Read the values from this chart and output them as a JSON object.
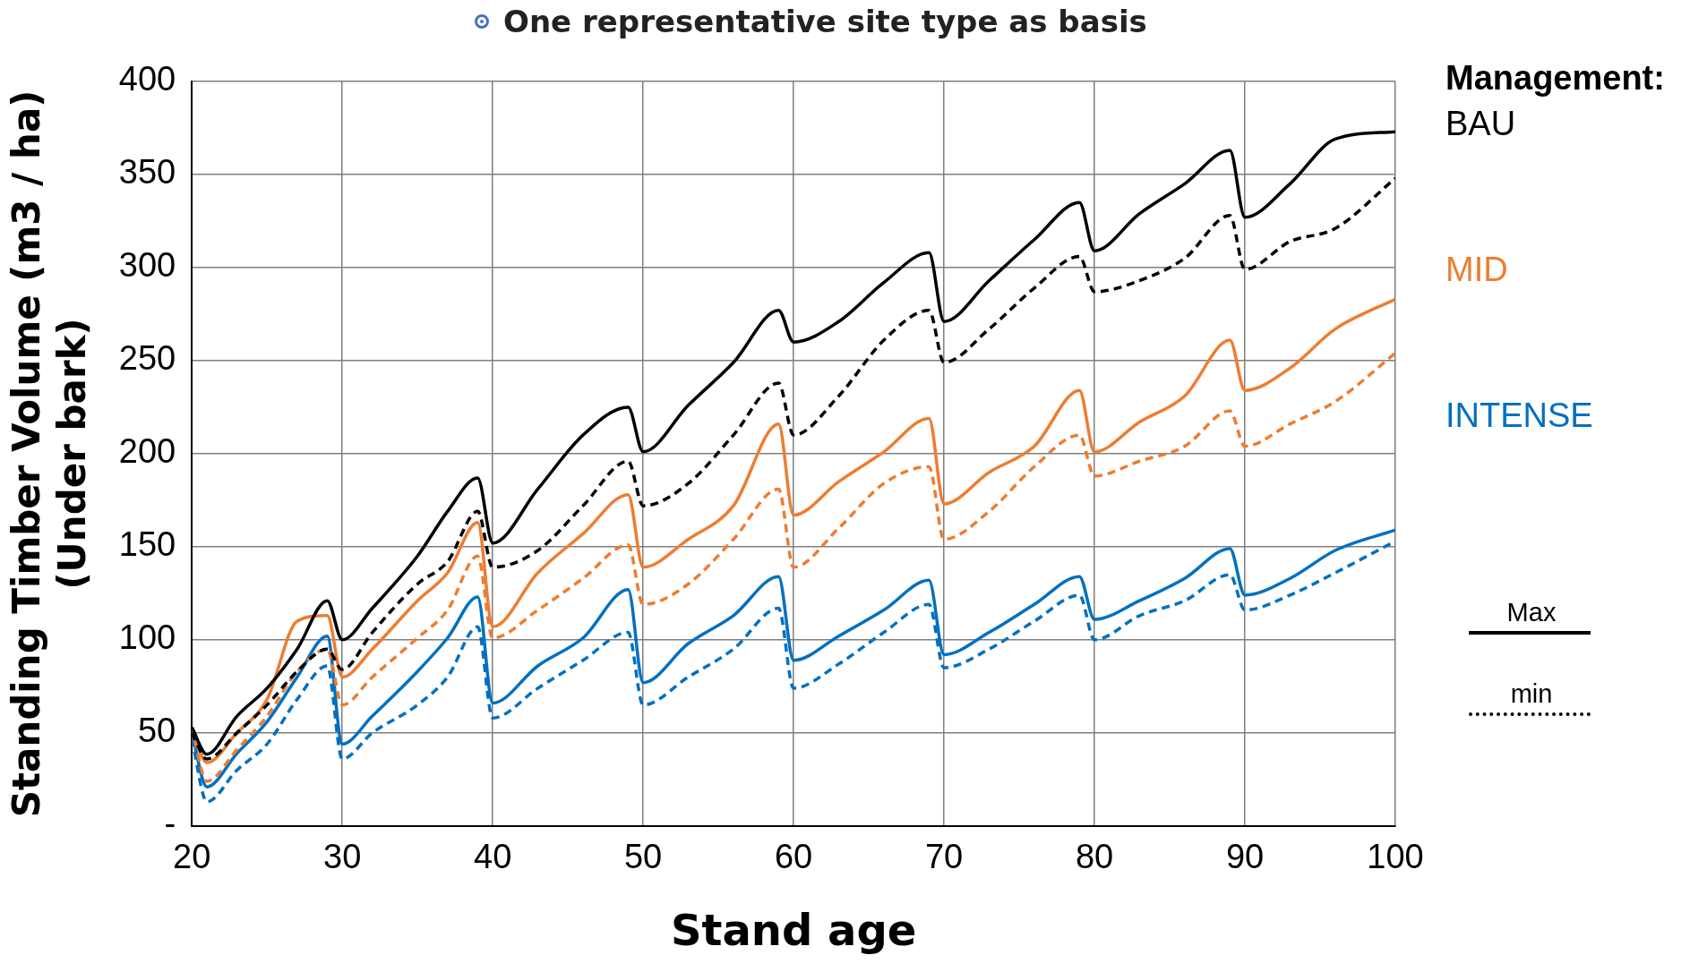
{
  "chart_data": {
    "type": "line",
    "title": "One representative site type as basis",
    "xlabel": "Stand age",
    "ylabel": "Standing Timber Volume (m3 / ha)\n(Under bark)",
    "legend_title": "Management:",
    "legend": "right",
    "grid": true,
    "marker": "none",
    "x": [
      20,
      21,
      23,
      25,
      27,
      29,
      30,
      32,
      35,
      37,
      39,
      40,
      43,
      46,
      49,
      50,
      53,
      56,
      59,
      60,
      63,
      66,
      69,
      70,
      73,
      76,
      79,
      80,
      83,
      86,
      89,
      90,
      93,
      96,
      100
    ],
    "xlim": [
      20,
      100
    ],
    "xticks": [
      20,
      30,
      40,
      50,
      60,
      70,
      80,
      90,
      100
    ],
    "ylim": [
      0,
      400
    ],
    "yticks": [
      {
        "value": 0,
        "label": "-"
      },
      50,
      100,
      150,
      200,
      250,
      300,
      350,
      400
    ],
    "series": [
      {
        "name": "BAU",
        "color": "#000000",
        "line_style": "solid",
        "values": [
          53,
          38.5,
          59,
          74,
          95,
          121,
          100,
          117,
          145,
          169,
          187,
          152,
          181,
          210,
          225,
          201,
          226,
          249,
          277,
          260,
          271,
          292,
          308,
          271,
          293,
          315,
          335,
          309,
          329,
          345,
          363,
          327,
          345,
          369,
          373
        ]
      },
      {
        "color": "#000000",
        "line_style": "dashed",
        "values": [
          50,
          36,
          50,
          65,
          83,
          95,
          84,
          104,
          130,
          142,
          169,
          139,
          148,
          172,
          196,
          172,
          184,
          210,
          238,
          210,
          231,
          261,
          277,
          249,
          267,
          289,
          306,
          287,
          293,
          305,
          328,
          299,
          314,
          321,
          348
        ]
      },
      {
        "name": "MID",
        "color": "#ed7d31",
        "line_style": "solid",
        "values": [
          53,
          34,
          50,
          68,
          110,
          113,
          80,
          95,
          121,
          136,
          163,
          107,
          136,
          157,
          178,
          139,
          154,
          172,
          216,
          167,
          185,
          201,
          219,
          173,
          190,
          204,
          234,
          201,
          217,
          231,
          261,
          234,
          246,
          267,
          283
        ]
      },
      {
        "color": "#ed7d31",
        "line_style": "dashed",
        "values": [
          53,
          24,
          41,
          59,
          83,
          95,
          65,
          80,
          101,
          116,
          145,
          101,
          116,
          133,
          151,
          119,
          130,
          154,
          181,
          139,
          160,
          184,
          193,
          154,
          169,
          193,
          210,
          188,
          196,
          204,
          223,
          204,
          216,
          228,
          254
        ]
      },
      {
        "name": "INTENSE",
        "color": "#0070c0",
        "line_style": "solid",
        "values": [
          50,
          21,
          39,
          56,
          80,
          102,
          44,
          59,
          83,
          101,
          123,
          66,
          86,
          101,
          127,
          77,
          98,
          113,
          134,
          89,
          102,
          116,
          132,
          92,
          104,
          119,
          134,
          111,
          121,
          133,
          149,
          124,
          133,
          148,
          159
        ]
      },
      {
        "color": "#0070c0",
        "line_style": "dashed",
        "values": [
          47,
          13,
          30,
          44,
          68,
          86,
          36,
          50,
          65,
          80,
          107,
          58,
          74,
          89,
          104,
          65,
          80,
          95,
          117,
          74,
          87,
          104,
          119,
          85,
          95,
          110,
          124,
          100,
          113,
          121,
          135,
          116,
          124,
          136,
          153
        ]
      }
    ],
    "annotations": [
      "Max",
      "min"
    ]
  }
}
